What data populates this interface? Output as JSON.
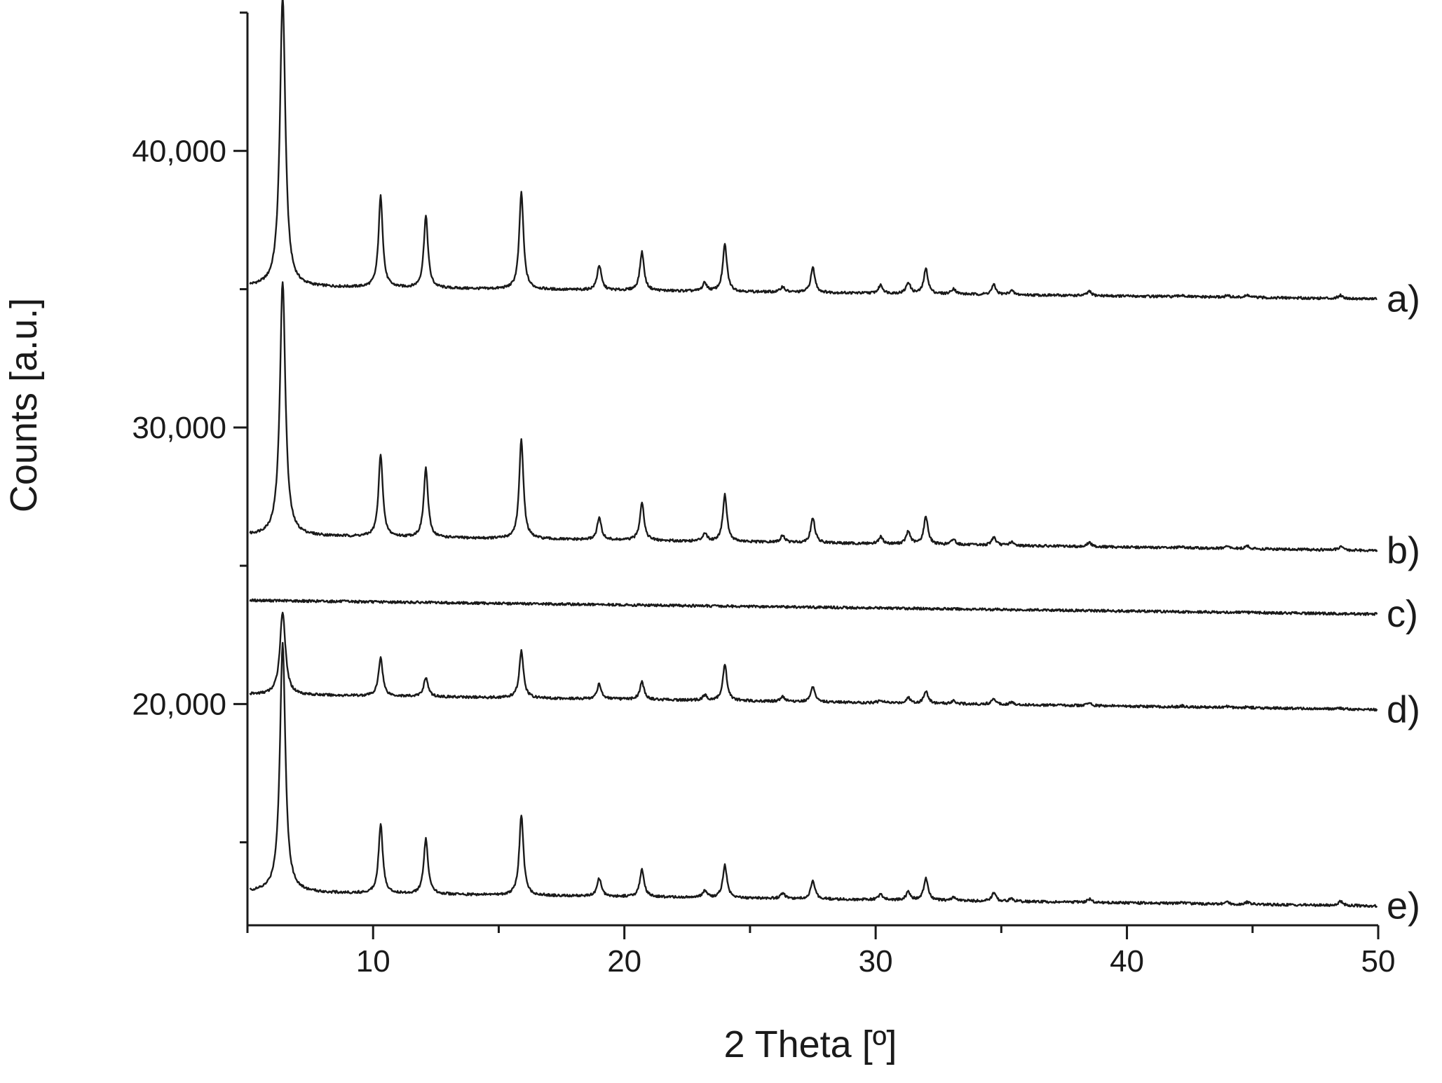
{
  "chart_data": {
    "type": "line",
    "title": "",
    "xlabel": "2 Theta [º]",
    "ylabel": "Counts [a.u.]",
    "xlim": [
      5,
      50
    ],
    "ylim": [
      12000,
      45000
    ],
    "x_ticks": [
      10,
      20,
      30,
      40,
      50
    ],
    "x_tick_labels": [
      "10",
      "20",
      "30",
      "40",
      "50"
    ],
    "y_ticks": [
      20000,
      30000,
      40000
    ],
    "y_tick_labels": [
      "20,000",
      "30,000",
      "40,000"
    ],
    "y_minor_ticks": [
      15000,
      25000,
      35000,
      45000
    ],
    "grid": false,
    "legend": "none",
    "line_color": "#1a1a1a",
    "peak_positions": [
      6.4,
      10.3,
      12.1,
      15.9,
      19.0,
      20.7,
      23.2,
      24.0,
      26.3,
      27.5,
      30.2,
      31.3,
      32.0,
      33.1,
      34.7,
      35.4,
      38.5,
      42.2,
      44.0,
      44.8,
      48.5
    ],
    "series": [
      {
        "name": "a)",
        "baseline_start": 35100,
        "baseline_end": 34650,
        "peak_intensities": [
          10500,
          3300,
          2600,
          3500,
          900,
          1400,
          300,
          1700,
          200,
          900,
          300,
          400,
          900,
          200,
          350,
          150,
          150,
          60,
          60,
          80,
          120
        ]
      },
      {
        "name": "b)",
        "baseline_start": 26100,
        "baseline_end": 25550,
        "peak_intensities": [
          9200,
          3000,
          2500,
          3600,
          800,
          1400,
          300,
          1700,
          250,
          900,
          250,
          450,
          1000,
          200,
          300,
          120,
          150,
          60,
          80,
          100,
          120
        ]
      },
      {
        "name": "c)",
        "baseline_start": 23750,
        "baseline_end": 23250,
        "peak_intensities": [
          0,
          0,
          0,
          0,
          0,
          0,
          0,
          0,
          0,
          0,
          0,
          0,
          0,
          0,
          0,
          0,
          0,
          0,
          0,
          0,
          0
        ]
      },
      {
        "name": "d)",
        "baseline_start": 20350,
        "baseline_end": 19800,
        "peak_intensities": [
          3000,
          1400,
          700,
          1700,
          550,
          650,
          180,
          1300,
          180,
          550,
          100,
          200,
          450,
          120,
          220,
          80,
          100,
          40,
          40,
          40,
          40
        ]
      },
      {
        "name": "e)",
        "baseline_start": 13200,
        "baseline_end": 12700,
        "peak_intensities": [
          9000,
          2500,
          2000,
          2900,
          650,
          1000,
          250,
          1200,
          200,
          650,
          200,
          300,
          800,
          120,
          300,
          100,
          120,
          50,
          60,
          80,
          150
        ]
      }
    ]
  }
}
